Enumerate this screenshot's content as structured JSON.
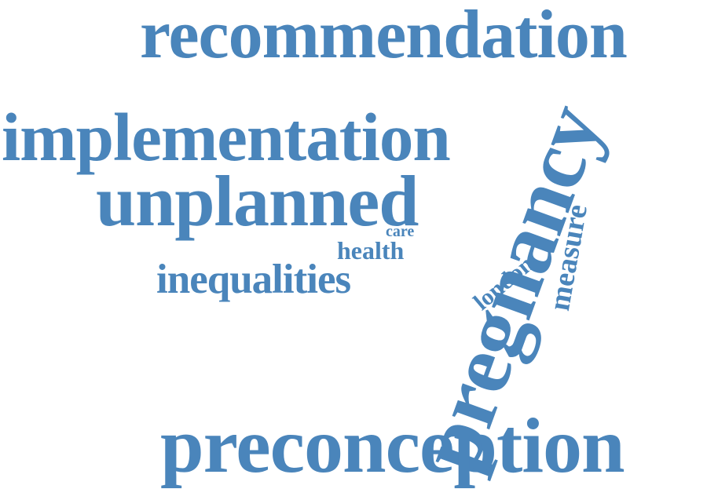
{
  "word_cloud": {
    "color": "#4a85bb",
    "words": {
      "recommendation": "recommendation",
      "implementation": "implementation",
      "unplanned": "unplanned",
      "pregnancy": "pregnancy",
      "care": "care",
      "health": "health",
      "london": "london",
      "measure": "measure",
      "inequalities": "inequalities",
      "preconception": "preconception"
    }
  }
}
